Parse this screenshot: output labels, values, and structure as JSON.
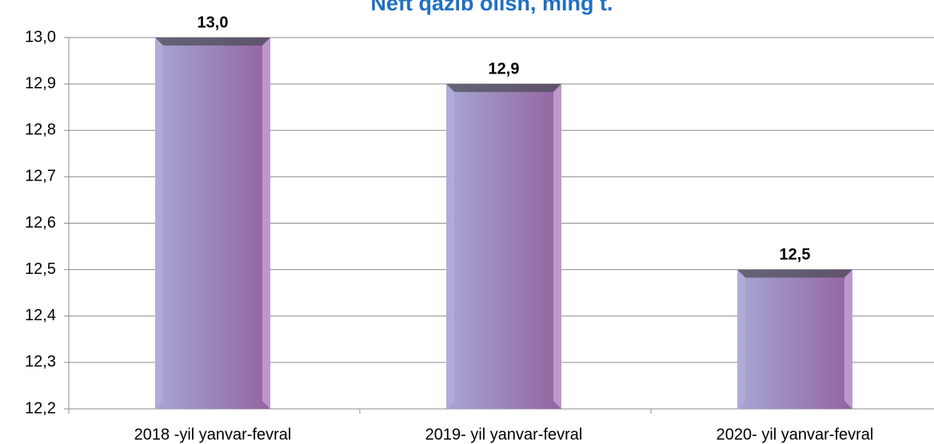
{
  "chart_data": {
    "type": "bar",
    "title": "Neft qazib olish, ming t.",
    "categories": [
      "2018 -yil yanvar-fevral",
      "2019- yil yanvar-fevral",
      "2020- yil yanvar-fevral"
    ],
    "values": [
      13.0,
      12.9,
      12.5
    ],
    "value_labels": [
      "13,0",
      "12,9",
      "12,5"
    ],
    "color": "#9d86bd",
    "ylim": [
      12.2,
      13.0
    ],
    "yticks": [
      {
        "value": 12.2,
        "label": "12,2"
      },
      {
        "value": 12.3,
        "label": "12,3"
      },
      {
        "value": 12.4,
        "label": "12,4"
      },
      {
        "value": 12.5,
        "label": "12,5"
      },
      {
        "value": 12.6,
        "label": "12,6"
      },
      {
        "value": 12.7,
        "label": "12,7"
      },
      {
        "value": 12.8,
        "label": "12,8"
      },
      {
        "value": 12.9,
        "label": "12,9"
      },
      {
        "value": 13.0,
        "label": "13,0"
      }
    ],
    "grid": true
  }
}
